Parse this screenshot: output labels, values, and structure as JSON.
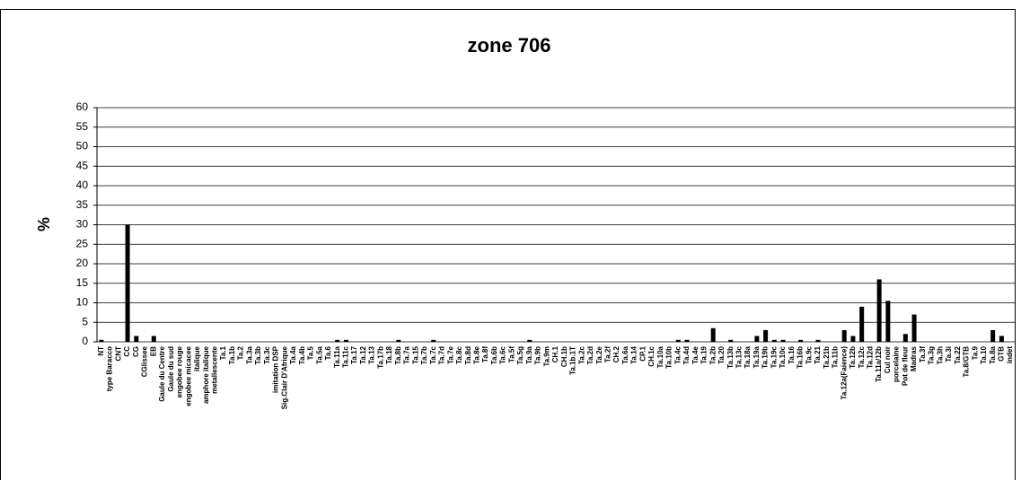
{
  "chart_data": {
    "type": "bar",
    "title": "zone 706",
    "y_label": "%",
    "categories": [
      "NT",
      "type Baracco",
      "CNT",
      "CC",
      "CG",
      "CGlissee",
      "EB",
      "Gaule du Centre",
      "Gaule du sud",
      "engobee rouge",
      "engobee micacee",
      "italique",
      "amphore italique",
      "metallescente",
      "Ta.1",
      "Ta.1b",
      "Ta.2",
      "Ta.3a",
      "Ta.3b",
      "Ta.3c",
      "imitation DSP",
      "Sig.Clair D'Afrique",
      "Ta.4a",
      "Ta.4b",
      "Ta.5",
      "Ta.5a",
      "Ta.6",
      "Ta.11a",
      "Ta.11c",
      "Ta.17",
      "Ta.12",
      "Ta.13",
      "Ta.17b",
      "Ta.18",
      "Ta.8b",
      "Ta.7a",
      "Ta.15",
      "Ta.7b",
      "Ta.7c",
      "Ta.7d",
      "Ta.7e",
      "Ta.8c",
      "Ta.8d",
      "Ta.8e",
      "Ta.8f",
      "Ta.6b",
      "Ta.6c",
      "Ta.5f",
      "Ta.5g",
      "Ta.9a",
      "Ta.9b",
      "Ta.9m",
      "CH.1",
      "CH.1b",
      "Ta.1b.1T",
      "Ta.2c",
      "Ta.2d",
      "Ta.2e",
      "Ta.2f",
      "CH.2",
      "Ta.6a",
      "Ta.14",
      "CP.1",
      "CH.1c",
      "Ta.10a",
      "Ta.10b",
      "Ta.4c",
      "Ta.4d",
      "Ta.4e",
      "Ta.19",
      "Ta.2b",
      "Ta.20",
      "Ta.13b",
      "Ta.13c",
      "Ta.18a",
      "Ta.19a",
      "Ta.19b",
      "Ta.19c",
      "Ta.10c",
      "Ta.16",
      "Ta.16b",
      "Ta.9c",
      "Ta.21",
      "Ta.21b",
      "Ta.11b",
      "Ta.12a(Faience)",
      "Ta.12b",
      "Ta.12c",
      "Ta.12d",
      "Ta.11a/12b",
      "Cul noir",
      "porcelaine",
      "Pot de fleur",
      "Madras",
      "Ta.3f",
      "Ta.3g",
      "Ta.3h",
      "Ta.3i",
      "Ta.22",
      "Ta.8/GTB",
      "Ta.9",
      "Ta.10",
      "Ta.8a",
      "GTB",
      "indet"
    ],
    "values": [
      0.5,
      0,
      0,
      30,
      1.5,
      0,
      1.5,
      0,
      0,
      0,
      0,
      0,
      0,
      0,
      0,
      0,
      0,
      0,
      0,
      0,
      0,
      0,
      0,
      0,
      0,
      0,
      0,
      0.5,
      0.5,
      0,
      0,
      0,
      0,
      0,
      0.5,
      0,
      0,
      0,
      0.5,
      0,
      0,
      0,
      0,
      0,
      0,
      0,
      0,
      0,
      0,
      0.5,
      0,
      0,
      0,
      0,
      0,
      0,
      0,
      0,
      0,
      0,
      0,
      0,
      0,
      0,
      0,
      0,
      0.5,
      0.5,
      0,
      0,
      3.5,
      0,
      0.5,
      0,
      0,
      1.5,
      3,
      0.5,
      0.5,
      0,
      0.5,
      0,
      0.5,
      0,
      0,
      3,
      1.5,
      9,
      0,
      16,
      10.5,
      0,
      2,
      7,
      0,
      0,
      0,
      0,
      0,
      0,
      0,
      0,
      3,
      1.5,
      0
    ],
    "color": "#000000",
    "ylim": [
      0,
      60
    ],
    "yticks": [
      0,
      5,
      10,
      15,
      20,
      25,
      30,
      35,
      40,
      45,
      50,
      55,
      60
    ],
    "grid": true
  }
}
